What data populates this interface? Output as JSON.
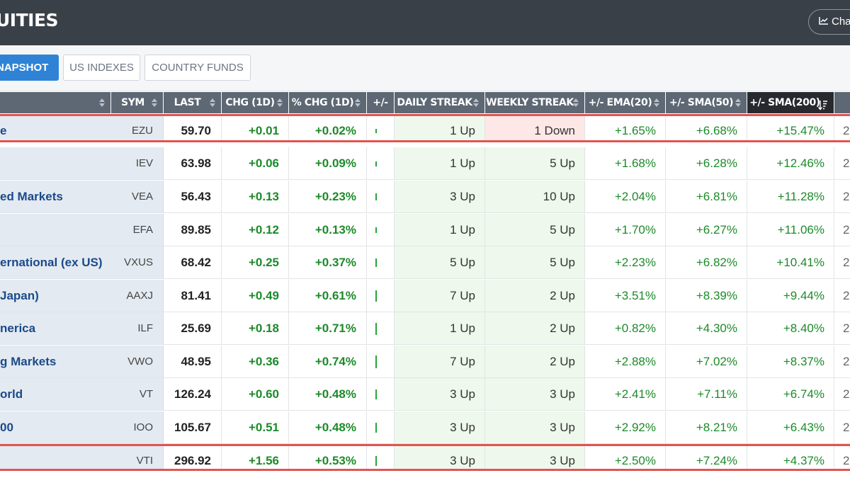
{
  "header": {
    "title": "UITIES",
    "chart_button_label": "Cha"
  },
  "tabs": [
    {
      "label": "NAPSHOT",
      "active": true
    },
    {
      "label": "US INDEXES",
      "active": false
    },
    {
      "label": "COUNTRY FUNDS",
      "active": false
    }
  ],
  "columns": {
    "sym": "SYM",
    "last": "LAST",
    "chg": "CHG (1D)",
    "pct": "% CHG (1D)",
    "pm": "+/-",
    "daily": "DAILY STREAK",
    "weekly": "WEEKLY STREAK",
    "ema20": "+/- EMA(20)",
    "sma50": "+/- SMA(50)",
    "sma200": "+/- SMA(200)"
  },
  "colors": {
    "header_bg": "#3a4048",
    "table_header_bg": "#5d6874",
    "active_tab": "#2f83d6",
    "positive": "#1c8a2a",
    "highlight": "#e05550"
  },
  "rows": [
    {
      "name": "e",
      "sym": "EZU",
      "last": "59.70",
      "chg": "+0.01",
      "pct": "+0.02%",
      "bar": 0.02,
      "daily": "1 Up",
      "weekly": "1 Down",
      "weekly_down": true,
      "ema20": "+1.65%",
      "sma50": "+6.68%",
      "sma200": "+15.47%",
      "extra": "2"
    },
    {
      "name": "",
      "sym": "IEV",
      "last": "63.98",
      "chg": "+0.06",
      "pct": "+0.09%",
      "bar": 0.09,
      "daily": "1 Up",
      "weekly": "5 Up",
      "weekly_down": false,
      "ema20": "+1.68%",
      "sma50": "+6.28%",
      "sma200": "+12.46%",
      "extra": "2"
    },
    {
      "name": "ed Markets",
      "sym": "VEA",
      "last": "56.43",
      "chg": "+0.13",
      "pct": "+0.23%",
      "bar": 0.23,
      "daily": "3 Up",
      "weekly": "10 Up",
      "weekly_down": false,
      "ema20": "+2.04%",
      "sma50": "+6.81%",
      "sma200": "+11.28%",
      "extra": "2"
    },
    {
      "name": "",
      "sym": "EFA",
      "last": "89.85",
      "chg": "+0.12",
      "pct": "+0.13%",
      "bar": 0.13,
      "daily": "1 Up",
      "weekly": "5 Up",
      "weekly_down": false,
      "ema20": "+1.70%",
      "sma50": "+6.27%",
      "sma200": "+11.06%",
      "extra": "2"
    },
    {
      "name": "ernational (ex US)",
      "sym": "VXUS",
      "last": "68.42",
      "chg": "+0.25",
      "pct": "+0.37%",
      "bar": 0.37,
      "daily": "5 Up",
      "weekly": "5 Up",
      "weekly_down": false,
      "ema20": "+2.23%",
      "sma50": "+6.82%",
      "sma200": "+10.41%",
      "extra": "2"
    },
    {
      "name": "Japan)",
      "sym": "AAXJ",
      "last": "81.41",
      "chg": "+0.49",
      "pct": "+0.61%",
      "bar": 0.61,
      "daily": "7 Up",
      "weekly": "2 Up",
      "weekly_down": false,
      "ema20": "+3.51%",
      "sma50": "+8.39%",
      "sma200": "+9.44%",
      "extra": "2"
    },
    {
      "name": "nerica",
      "sym": "ILF",
      "last": "25.69",
      "chg": "+0.18",
      "pct": "+0.71%",
      "bar": 0.71,
      "daily": "1 Up",
      "weekly": "2 Up",
      "weekly_down": false,
      "ema20": "+0.82%",
      "sma50": "+4.30%",
      "sma200": "+8.40%",
      "extra": "2"
    },
    {
      "name": "g Markets",
      "sym": "VWO",
      "last": "48.95",
      "chg": "+0.36",
      "pct": "+0.74%",
      "bar": 0.74,
      "daily": "7 Up",
      "weekly": "2 Up",
      "weekly_down": false,
      "ema20": "+2.88%",
      "sma50": "+7.02%",
      "sma200": "+8.37%",
      "extra": "2"
    },
    {
      "name": "orld",
      "sym": "VT",
      "last": "126.24",
      "chg": "+0.60",
      "pct": "+0.48%",
      "bar": 0.48,
      "daily": "3 Up",
      "weekly": "3 Up",
      "weekly_down": false,
      "ema20": "+2.41%",
      "sma50": "+7.11%",
      "sma200": "+6.74%",
      "extra": "2"
    },
    {
      "name": "00",
      "sym": "IOO",
      "last": "105.67",
      "chg": "+0.51",
      "pct": "+0.48%",
      "bar": 0.48,
      "daily": "3 Up",
      "weekly": "3 Up",
      "weekly_down": false,
      "ema20": "+2.92%",
      "sma50": "+8.21%",
      "sma200": "+6.43%",
      "extra": "2"
    },
    {
      "name": "",
      "sym": "VTI",
      "last": "296.92",
      "chg": "+1.56",
      "pct": "+0.53%",
      "bar": 0.53,
      "daily": "3 Up",
      "weekly": "3 Up",
      "weekly_down": false,
      "ema20": "+2.50%",
      "sma50": "+7.24%",
      "sma200": "+4.37%",
      "extra": "2"
    }
  ]
}
